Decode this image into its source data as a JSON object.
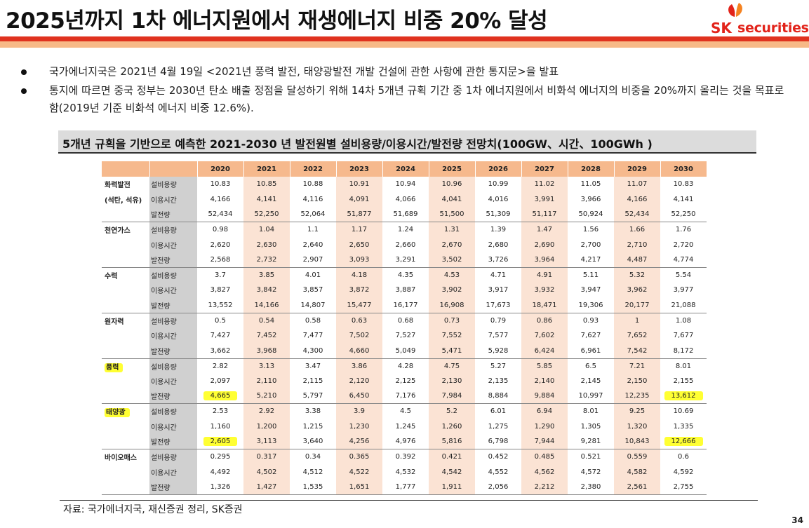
{
  "page": {
    "title": "2025년까지 1차 에너지원에서 재생에너지 비중 20% 달성",
    "page_number": "34"
  },
  "logo": {
    "sk": "SK",
    "securities": "securities",
    "brand_color": "#e2231a"
  },
  "bullets": [
    "국가에너지국은 2021년 4월 19일 <2021년 풍력 발전, 태양광발전 개발 건설에 관한 사항에 관한 통지문>을 발표",
    "통지에 따르면 중국 정부는 2030년 탄소 배출 정점을 달성하기 위해 14차 5개년 규획 기간 중 1차 에너지원에서 비화석 에너지의 비중을 20%까지 올리는 것을 목표로 함(2019년 기준 비화석 에너지 비중 12.6%)."
  ],
  "table_title": "5개년 규획을 기반으로 예측한 2021-2030 년 발전원별 설비용량/이용시간/발전량 전망치(100GW、시간、100GWh )",
  "table": {
    "years": [
      "2020",
      "2021",
      "2022",
      "2023",
      "2024",
      "2025",
      "2026",
      "2027",
      "2028",
      "2029",
      "2030"
    ],
    "groups": [
      {
        "name": "화력발전",
        "name2": "(석탄, 석유)",
        "rows": [
          {
            "item": "설비용량",
            "values": [
              "10.83",
              "10.85",
              "10.88",
              "10.91",
              "10.94",
              "10.96",
              "10.99",
              "11.02",
              "11.05",
              "11.07",
              "10.83"
            ]
          },
          {
            "item": "이용시간",
            "values": [
              "4,166",
              "4,141",
              "4,116",
              "4,091",
              "4,066",
              "4,041",
              "4,016",
              "3,991",
              "3,966",
              "4,166",
              "4,141"
            ]
          },
          {
            "item": "발전량",
            "values": [
              "52,434",
              "52,250",
              "52,064",
              "51,877",
              "51,689",
              "51,500",
              "51,309",
              "51,117",
              "50,924",
              "52,434",
              "52,250"
            ]
          }
        ]
      },
      {
        "name": "천연가스",
        "rows": [
          {
            "item": "설비용량",
            "values": [
              "0.98",
              "1.04",
              "1.1",
              "1.17",
              "1.24",
              "1.31",
              "1.39",
              "1.47",
              "1.56",
              "1.66",
              "1.76"
            ]
          },
          {
            "item": "이용시간",
            "values": [
              "2,620",
              "2,630",
              "2,640",
              "2,650",
              "2,660",
              "2,670",
              "2,680",
              "2,690",
              "2,700",
              "2,710",
              "2,720"
            ]
          },
          {
            "item": "발전량",
            "values": [
              "2,568",
              "2,732",
              "2,907",
              "3,093",
              "3,291",
              "3,502",
              "3,726",
              "3,964",
              "4,217",
              "4,487",
              "4,774"
            ]
          }
        ]
      },
      {
        "name": "수력",
        "rows": [
          {
            "item": "설비용량",
            "values": [
              "3.7",
              "3.85",
              "4.01",
              "4.18",
              "4.35",
              "4.53",
              "4.71",
              "4.91",
              "5.11",
              "5.32",
              "5.54"
            ]
          },
          {
            "item": "이용시간",
            "values": [
              "3,827",
              "3,842",
              "3,857",
              "3,872",
              "3,887",
              "3,902",
              "3,917",
              "3,932",
              "3,947",
              "3,962",
              "3,977"
            ]
          },
          {
            "item": "발전량",
            "values": [
              "13,552",
              "14,166",
              "14,807",
              "15,477",
              "16,177",
              "16,908",
              "17,673",
              "18,471",
              "19,306",
              "20,177",
              "21,088"
            ]
          }
        ]
      },
      {
        "name": "원자력",
        "rows": [
          {
            "item": "설비용량",
            "values": [
              "0.5",
              "0.54",
              "0.58",
              "0.63",
              "0.68",
              "0.73",
              "0.79",
              "0.86",
              "0.93",
              "1",
              "1.08"
            ]
          },
          {
            "item": "이용시간",
            "values": [
              "7,427",
              "7,452",
              "7,477",
              "7,502",
              "7,527",
              "7,552",
              "7,577",
              "7,602",
              "7,627",
              "7,652",
              "7,677"
            ]
          },
          {
            "item": "발전량",
            "values": [
              "3,662",
              "3,968",
              "4,300",
              "4,660",
              "5,049",
              "5,471",
              "5,928",
              "6,424",
              "6,961",
              "7,542",
              "8,172"
            ]
          }
        ]
      },
      {
        "name": "풍력",
        "highlight": true,
        "rows": [
          {
            "item": "설비용량",
            "values": [
              "2.82",
              "3.13",
              "3.47",
              "3.86",
              "4.28",
              "4.75",
              "5.27",
              "5.85",
              "6.5",
              "7.21",
              "8.01"
            ]
          },
          {
            "item": "이용시간",
            "values": [
              "2,097",
              "2,110",
              "2,115",
              "2,120",
              "2,125",
              "2,130",
              "2,135",
              "2,140",
              "2,145",
              "2,150",
              "2,155"
            ]
          },
          {
            "item": "발전량",
            "values": [
              "4,665",
              "5,210",
              "5,797",
              "6,450",
              "7,176",
              "7,984",
              "8,884",
              "9,884",
              "10,997",
              "12,235",
              "13,612"
            ],
            "highlight_cols": [
              0,
              10
            ]
          }
        ]
      },
      {
        "name": "태양광",
        "highlight": true,
        "rows": [
          {
            "item": "설비용량",
            "values": [
              "2.53",
              "2.92",
              "3.38",
              "3.9",
              "4.5",
              "5.2",
              "6.01",
              "6.94",
              "8.01",
              "9.25",
              "10.69"
            ]
          },
          {
            "item": "이용시간",
            "values": [
              "1,160",
              "1,200",
              "1,215",
              "1,230",
              "1,245",
              "1,260",
              "1,275",
              "1,290",
              "1,305",
              "1,320",
              "1,335"
            ]
          },
          {
            "item": "발전량",
            "values": [
              "2,605",
              "3,113",
              "3,640",
              "4,256",
              "4,976",
              "5,816",
              "6,798",
              "7,944",
              "9,281",
              "10,843",
              "12,666"
            ],
            "highlight_cols": [
              0,
              10
            ]
          }
        ]
      },
      {
        "name": "바이오매스",
        "rows": [
          {
            "item": "설비용량",
            "values": [
              "0.295",
              "0.317",
              "0.34",
              "0.365",
              "0.392",
              "0.421",
              "0.452",
              "0.485",
              "0.521",
              "0.559",
              "0.6"
            ]
          },
          {
            "item": "이용시간",
            "values": [
              "4,492",
              "4,502",
              "4,512",
              "4,522",
              "4,532",
              "4,542",
              "4,552",
              "4,562",
              "4,572",
              "4,582",
              "4,592"
            ]
          },
          {
            "item": "발전량",
            "values": [
              "1,326",
              "1,427",
              "1,535",
              "1,651",
              "1,777",
              "1,911",
              "2,056",
              "2,212",
              "2,380",
              "2,561",
              "2,755"
            ]
          }
        ]
      }
    ],
    "colors": {
      "header": "#f6b98d",
      "shaded_column": "#fbe3d4",
      "item_column": "#d0d0d0",
      "marker": "#ffff33"
    }
  },
  "source": "자료: 국가에너지국, 재신증권 정리, SK증권"
}
